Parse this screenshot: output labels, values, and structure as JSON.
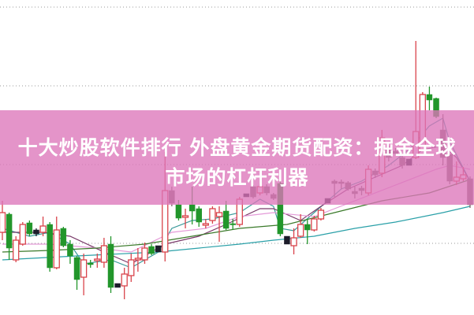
{
  "banner": {
    "line1": "十大炒股软件排行 外盘黄金期货配资：掘金全球",
    "line2": "市场的杠杆利器",
    "color": "#dd76ba"
  },
  "chart_data": {
    "type": "candlestick",
    "ylim": [
      0,
      100
    ],
    "grid": "horizontal dotted",
    "gridlines": [
      97.75,
      72.75,
      47.75,
      22.75
    ],
    "colors": {
      "up": "#d9434b",
      "down": "#22962b",
      "down_gray": "#7a6868",
      "mark": "#1c1c2a",
      "grid": "#999999"
    },
    "candles": [
      {
        "o": 26.25,
        "h": 36.25,
        "l": 23.75,
        "c": 32.5,
        "s": "up"
      },
      {
        "o": 32,
        "h": 32.5,
        "l": 17.5,
        "c": 21.25,
        "s": "down"
      },
      {
        "o": 17.5,
        "h": 25,
        "l": 16.75,
        "c": 23.75,
        "s": "up"
      },
      {
        "o": 22.5,
        "h": 29.5,
        "l": 22,
        "c": 28.75,
        "s": "up"
      },
      {
        "o": 29.25,
        "h": 30,
        "l": 25,
        "c": 25.75,
        "s": "down"
      },
      {
        "o": 27,
        "h": 27.5,
        "l": 25,
        "c": 25.75,
        "s": "mark"
      },
      {
        "o": 26.25,
        "h": 31.25,
        "l": 25,
        "c": 28.25,
        "s": "up"
      },
      {
        "o": 28.75,
        "h": 29.5,
        "l": 13.75,
        "c": 15,
        "s": "down"
      },
      {
        "o": 15,
        "h": 31.25,
        "l": 14.5,
        "c": 27,
        "s": "up"
      },
      {
        "o": 27.5,
        "h": 28,
        "l": 21.5,
        "c": 22,
        "s": "down"
      },
      {
        "o": 22.5,
        "h": 23.75,
        "l": 16.25,
        "c": 18.75,
        "s": "down"
      },
      {
        "o": 18.25,
        "h": 18.75,
        "l": 8,
        "c": 11.25,
        "s": "down"
      },
      {
        "o": 12,
        "h": 19.5,
        "l": 6.25,
        "c": 17.5,
        "s": "up"
      },
      {
        "o": 16.5,
        "h": 17.5,
        "l": 15,
        "c": 16,
        "s": "down"
      },
      {
        "o": 17.25,
        "h": 19.5,
        "l": 15,
        "c": 17.75,
        "s": "up"
      },
      {
        "o": 16.75,
        "h": 24.5,
        "l": 15,
        "c": 22,
        "s": "up"
      },
      {
        "o": 22.5,
        "h": 25,
        "l": 7,
        "c": 8.75,
        "s": "down"
      },
      {
        "o": 10,
        "h": 10,
        "l": 8.75,
        "c": 8.75,
        "s": "mark"
      },
      {
        "o": 9.25,
        "h": 15,
        "l": 5,
        "c": 13,
        "s": "up"
      },
      {
        "o": 12.5,
        "h": 19.5,
        "l": 10.5,
        "c": 17.5,
        "s": "up"
      },
      {
        "o": 17.5,
        "h": 21.25,
        "l": 13.75,
        "c": 18,
        "s": "up"
      },
      {
        "o": 17.5,
        "h": 23,
        "l": 16.25,
        "c": 21.25,
        "s": "up"
      },
      {
        "o": 21.75,
        "h": 22.5,
        "l": 19,
        "c": 19.5,
        "s": "down"
      },
      {
        "o": 22,
        "h": 22,
        "l": 20,
        "c": 20,
        "s": "mark"
      },
      {
        "o": 20,
        "h": 51.75,
        "l": 17,
        "c": 39.5,
        "s": "up"
      },
      {
        "o": 39.5,
        "h": 40.75,
        "l": 34.5,
        "c": 35.5,
        "s": "down_gray"
      },
      {
        "o": 35,
        "h": 36.5,
        "l": 30,
        "c": 30.75,
        "s": "down"
      },
      {
        "o": 31,
        "h": 33.75,
        "l": 27.5,
        "c": 31.5,
        "s": "up"
      },
      {
        "o": 35,
        "h": 40.75,
        "l": 28.75,
        "c": 33,
        "s": "down"
      },
      {
        "o": 33.75,
        "h": 34.5,
        "l": 28,
        "c": 29.5,
        "s": "down"
      },
      {
        "o": 28.5,
        "h": 30.5,
        "l": 27.5,
        "c": 29,
        "s": "up"
      },
      {
        "o": 30,
        "h": 34.5,
        "l": 29,
        "c": 33.75,
        "s": "up"
      },
      {
        "o": 31.25,
        "h": 34.5,
        "l": 23.25,
        "c": 32.5,
        "s": "up"
      },
      {
        "o": 33,
        "h": 36.25,
        "l": 27,
        "c": 27.5,
        "s": "down"
      },
      {
        "o": 29,
        "h": 30.5,
        "l": 27,
        "c": 28.75,
        "s": "down"
      },
      {
        "o": 28.75,
        "h": 37.5,
        "l": 28,
        "c": 36.75,
        "s": "up"
      },
      {
        "o": 38.5,
        "h": 38.5,
        "l": 37.5,
        "c": 37.5,
        "s": "mark"
      },
      {
        "o": 40.75,
        "h": 41.25,
        "l": 37,
        "c": 37.5,
        "s": "down_gray"
      },
      {
        "o": 38.75,
        "h": 41.75,
        "l": 38,
        "c": 40.75,
        "s": "up"
      },
      {
        "o": 40.75,
        "h": 41.5,
        "l": 38,
        "c": 38.75,
        "s": "down_gray"
      },
      {
        "o": 38.25,
        "h": 38.75,
        "l": 36.5,
        "c": 37,
        "s": "down_gray"
      },
      {
        "o": 41.75,
        "h": 43.75,
        "l": 25,
        "c": 25.75,
        "s": "down"
      },
      {
        "o": 25,
        "h": 25,
        "l": 22.5,
        "c": 22.5,
        "s": "mark"
      },
      {
        "o": 22,
        "h": 27.5,
        "l": 19.25,
        "c": 24.5,
        "s": "up"
      },
      {
        "o": 25,
        "h": 32,
        "l": 24.5,
        "c": 28.75,
        "s": "up"
      },
      {
        "o": 28.75,
        "h": 30.5,
        "l": 22.5,
        "c": 27,
        "s": "down"
      },
      {
        "o": 27,
        "h": 31.5,
        "l": 26.5,
        "c": 30.5,
        "s": "up"
      },
      {
        "o": 30.5,
        "h": 34,
        "l": 30,
        "c": 33.25,
        "s": "up"
      },
      {
        "o": 37,
        "h": 37,
        "l": 35.5,
        "c": 35.5,
        "s": "mark"
      },
      {
        "o": 42.5,
        "h": 43,
        "l": 37.5,
        "c": 41.75,
        "s": "down_gray"
      },
      {
        "o": 42.25,
        "h": 43,
        "l": 40,
        "c": 41.75,
        "s": "down_gray"
      },
      {
        "o": 42,
        "h": 42.5,
        "l": 39.5,
        "c": 40,
        "s": "down_gray"
      },
      {
        "o": 39.25,
        "h": 40.75,
        "l": 37,
        "c": 38.5,
        "s": "down_gray"
      },
      {
        "o": 40.25,
        "h": 41,
        "l": 38,
        "c": 39.5,
        "s": "down_gray"
      },
      {
        "o": 38.75,
        "h": 47.5,
        "l": 38,
        "c": 46.25,
        "s": "up"
      },
      {
        "o": 45.75,
        "h": 46.5,
        "l": 43.5,
        "c": 44.5,
        "s": "down_gray"
      },
      {
        "o": 45,
        "h": 58.75,
        "l": 43.75,
        "c": 56.25,
        "s": "up"
      },
      {
        "o": 52.5,
        "h": 53.75,
        "l": 48.75,
        "c": 50,
        "s": "down_gray"
      },
      {
        "o": 52,
        "h": 53,
        "l": 50.5,
        "c": 51.25,
        "s": "down_gray"
      },
      {
        "o": 50,
        "h": 51,
        "l": 46.5,
        "c": 47.5,
        "s": "down_gray"
      },
      {
        "o": 49.5,
        "h": 49.5,
        "l": 47.5,
        "c": 47.5,
        "s": "mark"
      },
      {
        "o": 50,
        "h": 87,
        "l": 49.5,
        "c": 58.25,
        "s": "up"
      },
      {
        "o": 52.5,
        "h": 70.75,
        "l": 52,
        "c": 70,
        "s": "up"
      },
      {
        "o": 70,
        "h": 72.5,
        "l": 65,
        "c": 68.25,
        "s": "down"
      },
      {
        "o": 68.75,
        "h": 69,
        "l": 62.5,
        "c": 63,
        "s": "down"
      },
      {
        "o": 58.75,
        "h": 63.75,
        "l": 47.5,
        "c": 50,
        "s": "down_gray"
      },
      {
        "o": 51,
        "h": 52,
        "l": 41.5,
        "c": 42.5,
        "s": "down_gray"
      },
      {
        "o": 42.5,
        "h": 48.75,
        "l": 41.25,
        "c": 43.75,
        "s": "up"
      },
      {
        "o": 43.25,
        "h": 47,
        "l": 42.5,
        "c": 44.5,
        "s": "up"
      },
      {
        "o": 43.25,
        "h": 44,
        "l": 34,
        "c": 35,
        "s": "down_gray"
      }
    ],
    "moving_averages": [
      {
        "color": "#3a9a9a",
        "points": [
          [
            0,
            27.5
          ],
          [
            4,
            25
          ],
          [
            7,
            26.25
          ],
          [
            10,
            22.5
          ],
          [
            12,
            16.25
          ],
          [
            16,
            17.5
          ],
          [
            19,
            15
          ],
          [
            23,
            20
          ],
          [
            25,
            27.5
          ],
          [
            28,
            30
          ],
          [
            31,
            30.5
          ],
          [
            35,
            32.5
          ],
          [
            38,
            36.75
          ],
          [
            40,
            34.5
          ],
          [
            41,
            27.5
          ],
          [
            43,
            26.75
          ],
          [
            46,
            32.5
          ],
          [
            50,
            40
          ],
          [
            53,
            42.5
          ],
          [
            57,
            47.5
          ],
          [
            60,
            52.5
          ],
          [
            63,
            60
          ],
          [
            65,
            62.5
          ],
          [
            66,
            55
          ],
          [
            69,
            42.5
          ]
        ]
      },
      {
        "color": "#7a3a6a",
        "points": [
          [
            0,
            26.25
          ],
          [
            6,
            26.25
          ],
          [
            10,
            25
          ],
          [
            15,
            20
          ],
          [
            19,
            16.25
          ],
          [
            24,
            22.5
          ],
          [
            29,
            25
          ],
          [
            33,
            28.75
          ],
          [
            38,
            33.75
          ],
          [
            40,
            33.75
          ],
          [
            44,
            30
          ],
          [
            47,
            34.5
          ],
          [
            51,
            40
          ],
          [
            55,
            43.75
          ],
          [
            59,
            47.5
          ],
          [
            62,
            52.5
          ],
          [
            65,
            53.75
          ],
          [
            67,
            50
          ],
          [
            69,
            42.5
          ]
        ]
      },
      {
        "color": "#e49ad8",
        "points": [
          [
            0,
            22.5
          ],
          [
            7,
            22.5
          ],
          [
            14,
            21.25
          ],
          [
            19,
            20
          ],
          [
            25,
            26.25
          ],
          [
            30,
            27.5
          ],
          [
            35,
            31.25
          ],
          [
            40,
            32.5
          ],
          [
            46,
            31.25
          ],
          [
            52,
            36.25
          ],
          [
            58,
            41.25
          ],
          [
            64,
            46.25
          ],
          [
            66,
            47.5
          ],
          [
            69,
            46.25
          ]
        ]
      },
      {
        "color": "#3a7a2a",
        "points": [
          [
            0,
            20
          ],
          [
            7,
            20.5
          ],
          [
            14,
            21.25
          ],
          [
            21,
            22.5
          ],
          [
            28,
            25
          ],
          [
            35,
            27.5
          ],
          [
            42,
            28.75
          ],
          [
            49,
            32.5
          ],
          [
            56,
            36.25
          ],
          [
            63,
            38.75
          ],
          [
            69,
            43
          ]
        ]
      },
      {
        "color": "#2aa0a8",
        "points": [
          [
            0,
            17.5
          ],
          [
            11,
            18.75
          ],
          [
            23,
            20
          ],
          [
            35,
            22.5
          ],
          [
            40,
            23.75
          ],
          [
            46,
            25
          ],
          [
            52,
            27.5
          ],
          [
            58,
            29.5
          ],
          [
            65,
            32.5
          ],
          [
            69,
            34.5
          ]
        ]
      }
    ]
  }
}
